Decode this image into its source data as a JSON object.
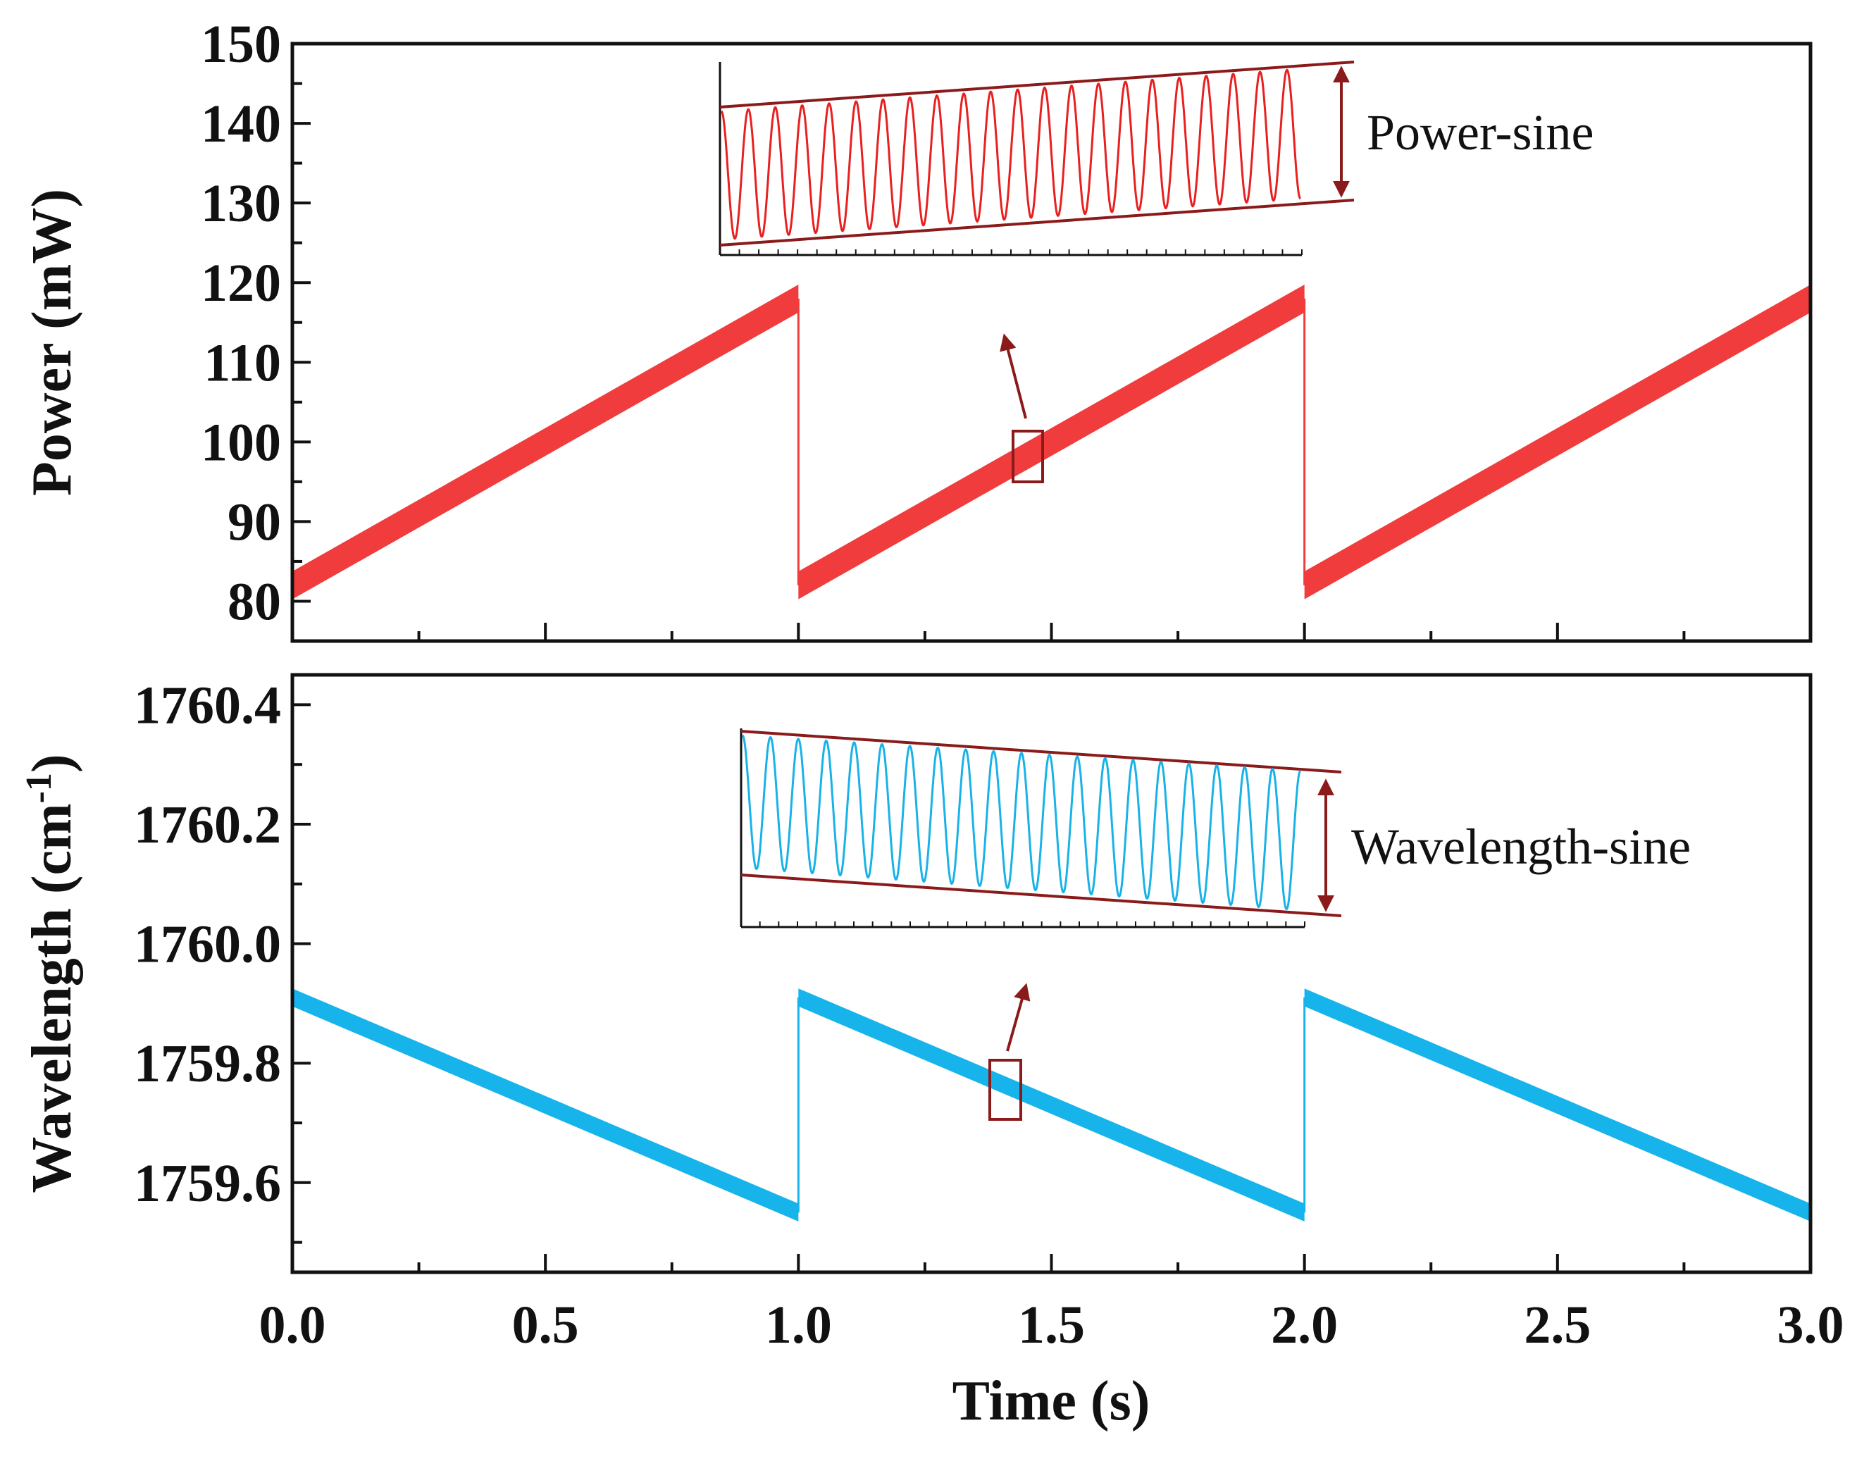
{
  "chart_data": [
    {
      "type": "line",
      "panel": "top",
      "title": "",
      "xlabel": "Time (s)",
      "ylabel": "Power (mW)",
      "ylim": [
        75,
        150
      ],
      "xlim": [
        0.0,
        3.0
      ],
      "yticks": [
        "80",
        "90",
        "100",
        "110",
        "120",
        "130",
        "140",
        "150"
      ],
      "series": [
        {
          "name": "Power",
          "color": "#f03c3c",
          "x": [
            0.0,
            1.0,
            1.0,
            2.0,
            2.0,
            3.0
          ],
          "y": [
            82,
            118,
            82,
            118,
            82,
            118
          ],
          "band": 3.5
        }
      ],
      "inset": {
        "label": "Power-sine",
        "color": "#e82020",
        "cycles": 21,
        "trend": "increasing"
      }
    },
    {
      "type": "line",
      "panel": "bottom",
      "title": "",
      "xlabel": "Time (s)",
      "ylabel": "Wavelength (cm",
      "ylabel_sup": "-1",
      "ylabel_close": ")",
      "ylim": [
        1759.45,
        1760.45
      ],
      "xlim": [
        0.0,
        3.0
      ],
      "yticks": [
        "1759.6",
        "1759.8",
        "1760.0",
        "1760.2",
        "1760.4"
      ],
      "xticks": [
        "0.0",
        "0.5",
        "1.0",
        "1.5",
        "2.0",
        "2.5",
        "3.0"
      ],
      "series": [
        {
          "name": "Wavelength",
          "color": "#17b4ec",
          "x": [
            0.0,
            1.0,
            1.0,
            2.0,
            2.0,
            3.0
          ],
          "y": [
            1759.91,
            1759.55,
            1759.91,
            1759.55,
            1759.91,
            1759.55
          ],
          "band": 0.03
        }
      ],
      "inset": {
        "label": "Wavelength-sine",
        "color": "#19b2e8",
        "cycles": 20,
        "trend": "decreasing"
      }
    }
  ],
  "colors": {
    "frame": "#111111",
    "annotation": "#8b1a1a"
  }
}
